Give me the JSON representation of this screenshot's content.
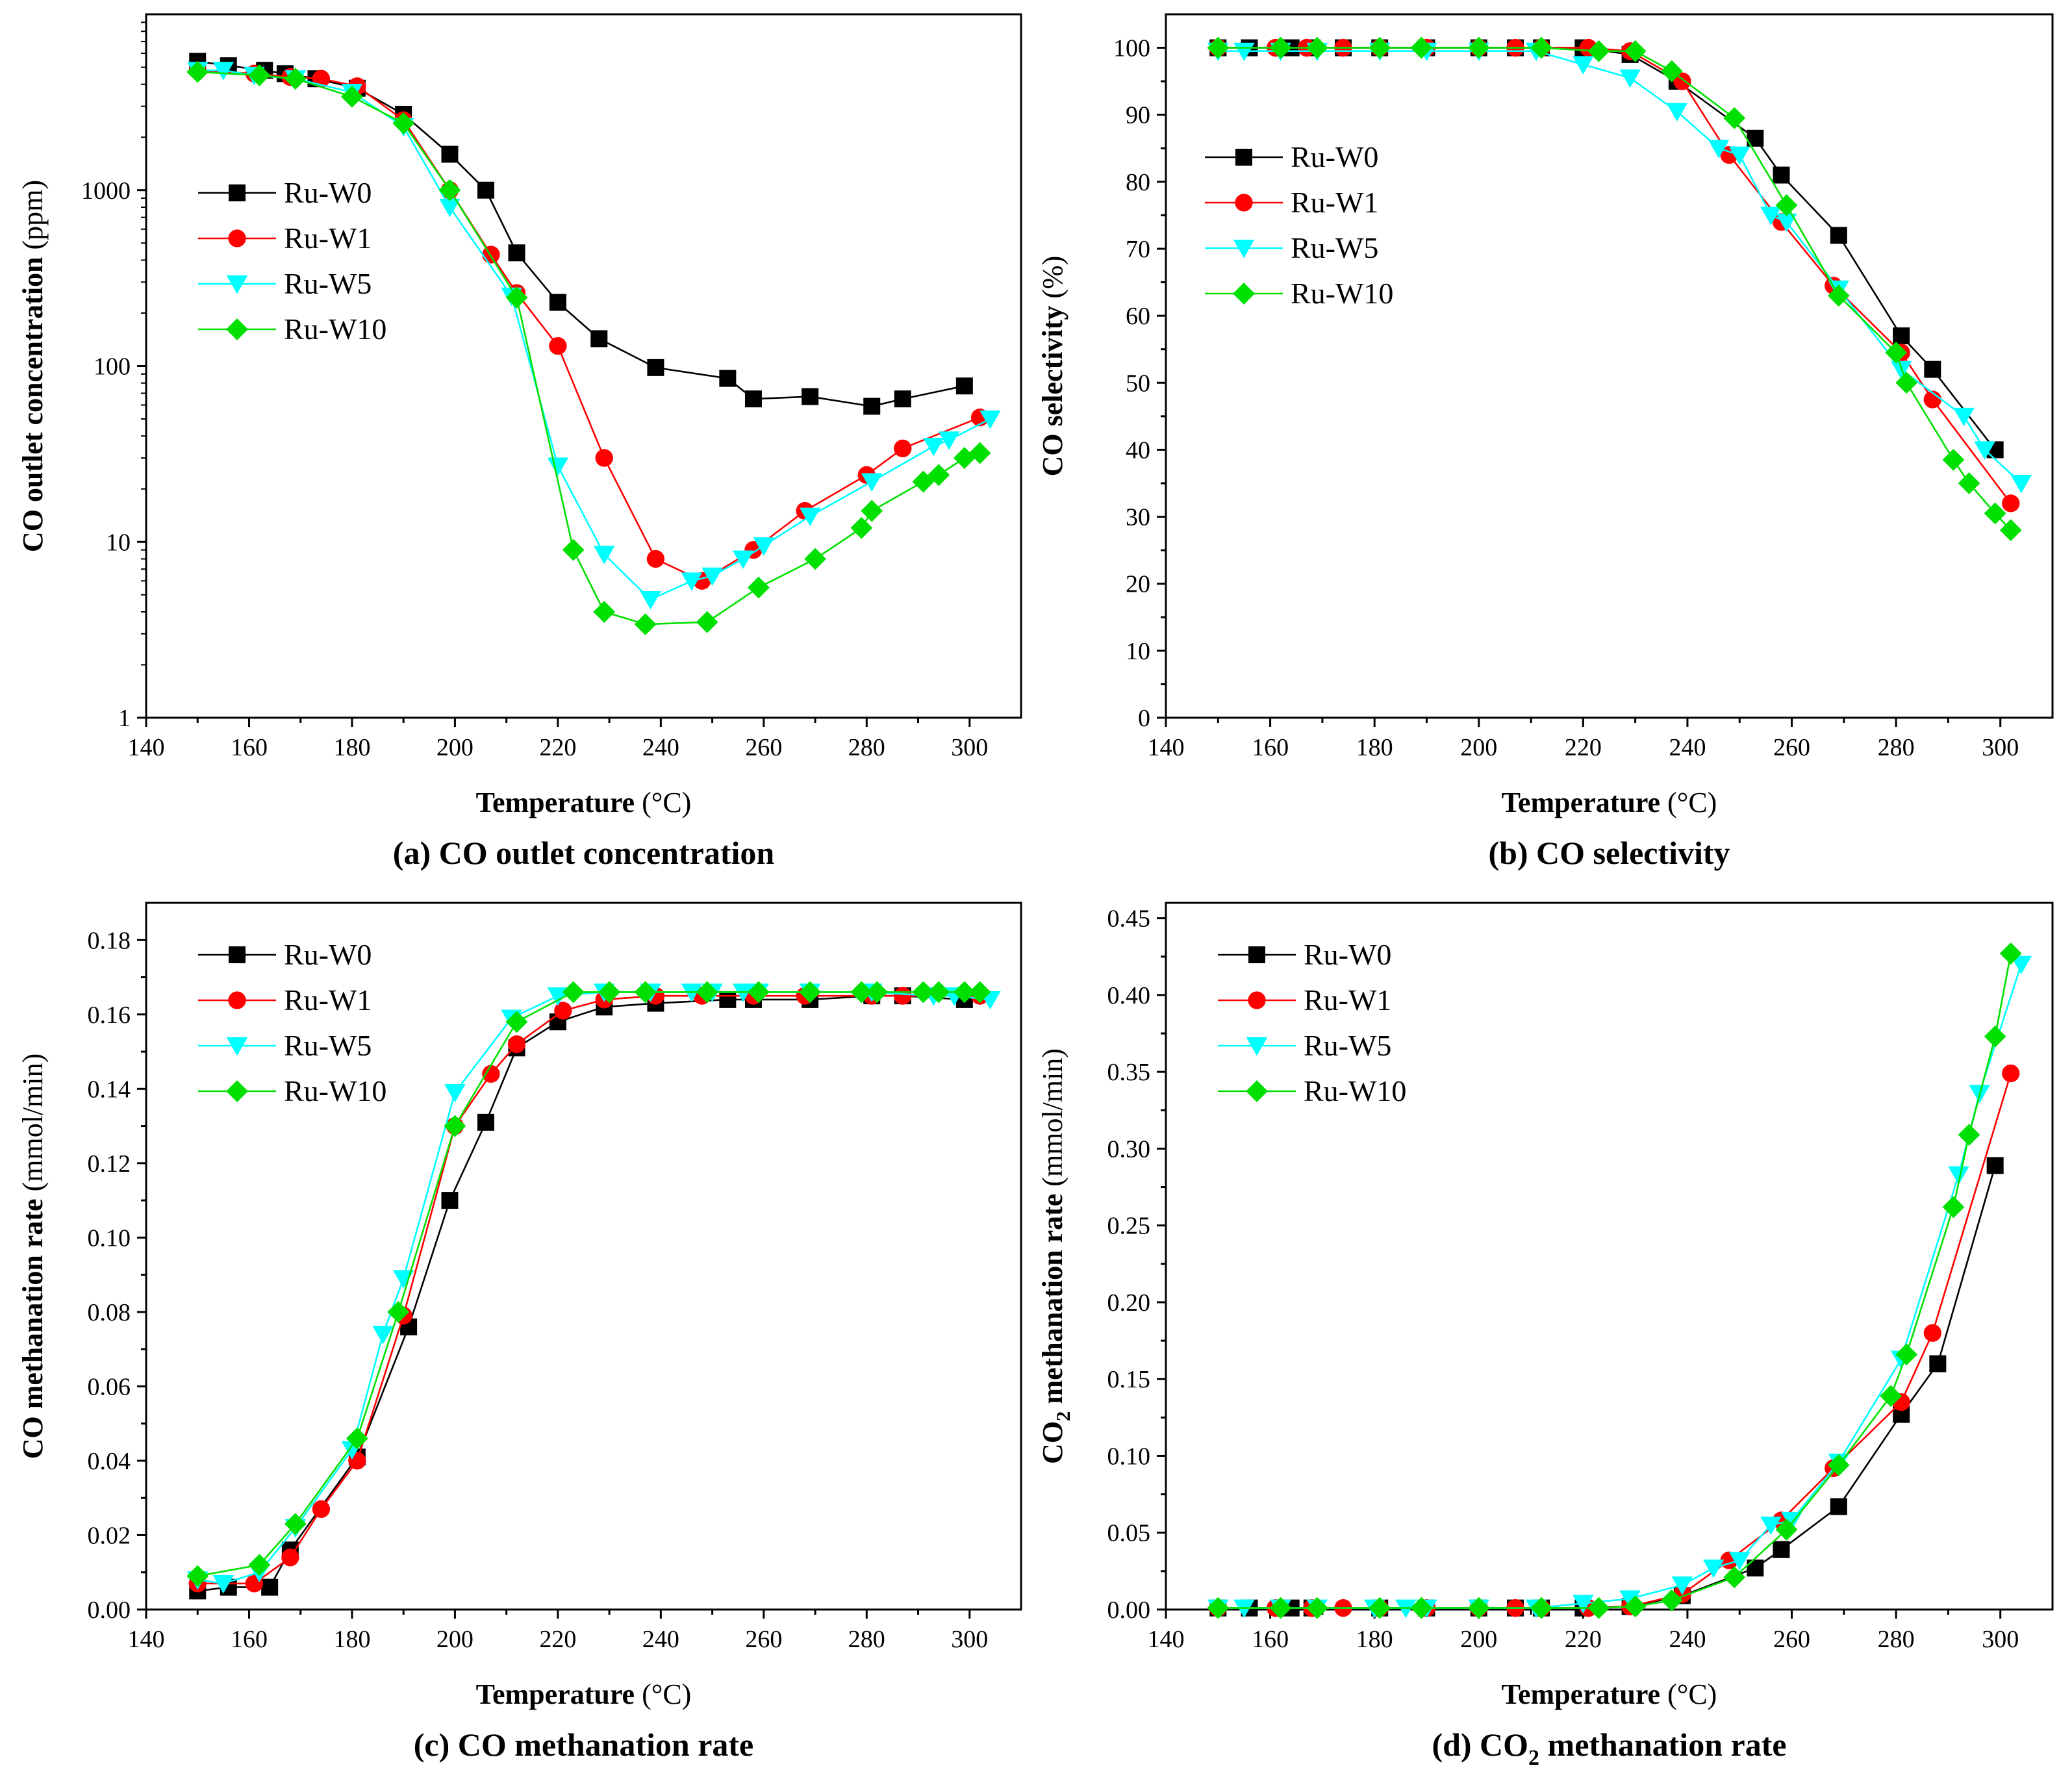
{
  "figure": {
    "xlabel": "Temperature (°C)",
    "colors": {
      "Ru-W0": "#000000",
      "Ru-W1": "#ff0000",
      "Ru-W5": "#00ffff",
      "Ru-W10": "#00e000"
    },
    "markers": {
      "Ru-W0": "square",
      "Ru-W1": "circle",
      "Ru-W5": "triangle-down",
      "Ru-W10": "diamond"
    }
  },
  "chart_data": [
    {
      "type": "line",
      "caption": "(a) CO outlet concentration",
      "ylabel": "CO outlet concentration (ppm)",
      "xlabel": "Temperature (°C)",
      "yscale": "log",
      "xlim": [
        140,
        310
      ],
      "ylim": [
        1,
        10000
      ],
      "xticks": [
        140,
        160,
        180,
        200,
        220,
        240,
        260,
        280,
        300
      ],
      "yticks": [
        1,
        10,
        100,
        1000
      ],
      "ytick_labels": [
        "1",
        "10",
        "100",
        "1000"
      ],
      "legend": "upper-left",
      "series": [
        {
          "name": "Ru-W0",
          "x": [
            150,
            156,
            163,
            167,
            173,
            181,
            190,
            199,
            206,
            212,
            220,
            228,
            239,
            253,
            258,
            269,
            281,
            287,
            299
          ],
          "y": [
            5400,
            5100,
            4800,
            4600,
            4300,
            3800,
            2700,
            1600,
            1000,
            440,
            230,
            143,
            98,
            85,
            65,
            67,
            59,
            65,
            77
          ]
        },
        {
          "name": "Ru-W1",
          "x": [
            150,
            161,
            168,
            174,
            181,
            190,
            199,
            207,
            212,
            220,
            229,
            239,
            248,
            258,
            268,
            280,
            287,
            302
          ],
          "y": [
            4800,
            4600,
            4400,
            4300,
            3900,
            2500,
            1000,
            430,
            260,
            130,
            30,
            8,
            6,
            9,
            15,
            24,
            34,
            51
          ]
        },
        {
          "name": "Ru-W5",
          "x": [
            150,
            155,
            161,
            169,
            180,
            190,
            199,
            211,
            220,
            229,
            238,
            246,
            250,
            256,
            260,
            269,
            281,
            293,
            296,
            304
          ],
          "y": [
            4800,
            4800,
            4500,
            4300,
            3600,
            2300,
            800,
            250,
            27,
            8.5,
            4.7,
            6,
            6.4,
            8,
            9.5,
            14,
            22,
            35,
            38,
            50
          ]
        },
        {
          "name": "Ru-W10",
          "x": [
            150,
            162,
            169,
            180,
            190,
            199,
            212,
            223,
            229,
            237,
            249,
            259,
            270,
            279,
            281,
            291,
            294,
            299,
            302
          ],
          "y": [
            4700,
            4500,
            4300,
            3400,
            2400,
            1000,
            245,
            9,
            4,
            3.4,
            3.5,
            5.5,
            8,
            12,
            15,
            22,
            24,
            30,
            32
          ]
        }
      ]
    },
    {
      "type": "line",
      "caption": "(b) CO selectivity",
      "ylabel": "CO selectivity (%)",
      "xlabel": "Temperature (°C)",
      "yscale": "linear",
      "xlim": [
        140,
        310
      ],
      "ylim": [
        0,
        105
      ],
      "xticks": [
        140,
        160,
        180,
        200,
        220,
        240,
        260,
        280,
        300
      ],
      "yticks": [
        0,
        10,
        20,
        30,
        40,
        50,
        60,
        70,
        80,
        90,
        100
      ],
      "ytick_labels": [
        "0",
        "10",
        "20",
        "30",
        "40",
        "50",
        "60",
        "70",
        "80",
        "90",
        "100"
      ],
      "legend": "left",
      "series": [
        {
          "name": "Ru-W0",
          "x": [
            150,
            156,
            164,
            168,
            174,
            181,
            190,
            200,
            207,
            212,
            220,
            229,
            238,
            253,
            258,
            269,
            281,
            287,
            299
          ],
          "y": [
            100,
            100,
            100,
            100,
            100,
            100,
            100,
            100,
            100,
            100,
            100,
            99,
            95,
            86.5,
            81,
            72,
            57,
            52,
            40
          ]
        },
        {
          "name": "Ru-W1",
          "x": [
            150,
            161,
            167,
            174,
            181,
            190,
            200,
            207,
            212,
            221,
            229,
            239,
            248,
            258,
            268,
            281,
            287,
            302
          ],
          "y": [
            100,
            100,
            100,
            100,
            100,
            100,
            100,
            100,
            100,
            100,
            99.5,
            95,
            84,
            74,
            64.5,
            54.5,
            47.5,
            32
          ]
        },
        {
          "name": "Ru-W5",
          "x": [
            150,
            155,
            162,
            169,
            181,
            190,
            200,
            211,
            220,
            229,
            238,
            246,
            250,
            256,
            259,
            269,
            281,
            293,
            297,
            304
          ],
          "y": [
            99.5,
            99.5,
            99.5,
            99.5,
            99.5,
            99.5,
            99.5,
            99.5,
            97.5,
            95.5,
            90.5,
            85,
            84,
            75,
            74,
            64,
            52,
            45,
            40,
            35
          ]
        },
        {
          "name": "Ru-W10",
          "x": [
            150,
            162,
            169,
            181,
            189,
            200,
            212,
            223,
            230,
            237,
            249,
            259,
            269,
            280,
            282,
            291,
            294,
            299,
            302
          ],
          "y": [
            100,
            100,
            100,
            100,
            100,
            100,
            100,
            99.5,
            99.5,
            96.5,
            89.5,
            76.5,
            63,
            54.5,
            50,
            38.5,
            35,
            30.5,
            28
          ]
        }
      ]
    },
    {
      "type": "line",
      "caption": "(c) CO methanation rate",
      "ylabel": "CO methanation rate (mmol/min)",
      "xlabel": "Temperature (°C)",
      "yscale": "linear",
      "xlim": [
        140,
        310
      ],
      "ylim": [
        0,
        0.19
      ],
      "xticks": [
        140,
        160,
        180,
        200,
        220,
        240,
        260,
        280,
        300
      ],
      "yticks": [
        0,
        0.02,
        0.04,
        0.06,
        0.08,
        0.1,
        0.12,
        0.14,
        0.16,
        0.18
      ],
      "ytick_labels": [
        "0.00",
        "0.02",
        "0.04",
        "0.06",
        "0.08",
        "0.10",
        "0.12",
        "0.14",
        "0.16",
        "0.18"
      ],
      "legend": "upper-left",
      "series": [
        {
          "name": "Ru-W0",
          "x": [
            150,
            156,
            164,
            168,
            181,
            191,
            199,
            206,
            212,
            220,
            229,
            239,
            253,
            258,
            269,
            281,
            287,
            299
          ],
          "y": [
            0.005,
            0.006,
            0.006,
            0.016,
            0.041,
            0.076,
            0.11,
            0.131,
            0.151,
            0.158,
            0.162,
            0.163,
            0.164,
            0.164,
            0.164,
            0.165,
            0.165,
            0.164
          ]
        },
        {
          "name": "Ru-W1",
          "x": [
            150,
            161,
            168,
            174,
            181,
            190,
            200,
            207,
            212,
            221,
            229,
            239,
            248,
            258,
            268,
            281,
            287,
            302
          ],
          "y": [
            0.007,
            0.007,
            0.014,
            0.027,
            0.04,
            0.079,
            0.13,
            0.144,
            0.152,
            0.161,
            0.164,
            0.165,
            0.165,
            0.165,
            0.165,
            0.165,
            0.165,
            0.165
          ]
        },
        {
          "name": "Ru-W5",
          "x": [
            150,
            155,
            162,
            169,
            180,
            186,
            190,
            200,
            211,
            220,
            229,
            238,
            246,
            250,
            256,
            259,
            269,
            281,
            293,
            297,
            304
          ],
          "y": [
            0.008,
            0.007,
            0.01,
            0.022,
            0.043,
            0.074,
            0.089,
            0.139,
            0.159,
            0.165,
            0.166,
            0.166,
            0.166,
            0.166,
            0.166,
            0.166,
            0.166,
            0.166,
            0.165,
            0.165,
            0.164
          ]
        },
        {
          "name": "Ru-W10",
          "x": [
            150,
            162,
            169,
            181,
            189,
            200,
            212,
            223,
            230,
            237,
            249,
            259,
            269,
            279,
            282,
            291,
            294,
            299,
            302
          ],
          "y": [
            0.009,
            0.012,
            0.023,
            0.046,
            0.08,
            0.13,
            0.158,
            0.166,
            0.166,
            0.166,
            0.166,
            0.166,
            0.166,
            0.166,
            0.166,
            0.166,
            0.166,
            0.166,
            0.166
          ]
        }
      ]
    },
    {
      "type": "line",
      "caption": "(d) CO2 methanation rate",
      "ylabel": "CO2 methanation rate (mmol/min)",
      "xlabel": "Temperature (°C)",
      "yscale": "linear",
      "xlim": [
        140,
        310
      ],
      "ylim": [
        0,
        0.46
      ],
      "xticks": [
        140,
        160,
        180,
        200,
        220,
        240,
        260,
        280,
        300
      ],
      "yticks": [
        0,
        0.05,
        0.1,
        0.15,
        0.2,
        0.25,
        0.3,
        0.35,
        0.4,
        0.45
      ],
      "ytick_labels": [
        "0.00",
        "0.05",
        "0.10",
        "0.15",
        "0.20",
        "0.25",
        "0.30",
        "0.35",
        "0.40",
        "0.45"
      ],
      "legend": "upper-left",
      "series": [
        {
          "name": "Ru-W0",
          "x": [
            150,
            156,
            164,
            168,
            181,
            190,
            200,
            207,
            212,
            220,
            229,
            239,
            253,
            258,
            269,
            281,
            288,
            299
          ],
          "y": [
            0.001,
            0.001,
            0.001,
            0.001,
            0.001,
            0.001,
            0.001,
            0.001,
            0.001,
            0.001,
            0.002,
            0.009,
            0.027,
            0.039,
            0.067,
            0.127,
            0.16,
            0.289
          ]
        },
        {
          "name": "Ru-W1",
          "x": [
            150,
            161,
            168,
            174,
            181,
            190,
            200,
            207,
            212,
            221,
            229,
            239,
            248,
            258,
            268,
            281,
            287,
            302
          ],
          "y": [
            0.001,
            0.001,
            0.001,
            0.001,
            0.001,
            0.001,
            0.001,
            0.001,
            0.001,
            0.001,
            0.002,
            0.01,
            0.032,
            0.058,
            0.092,
            0.135,
            0.18,
            0.349
          ]
        },
        {
          "name": "Ru-W5",
          "x": [
            150,
            155,
            162,
            169,
            180,
            186,
            190,
            200,
            211,
            220,
            229,
            239,
            245,
            250,
            256,
            260,
            269,
            281,
            292,
            296,
            304
          ],
          "y": [
            0.001,
            0.001,
            0.001,
            0.001,
            0.001,
            0.001,
            0.001,
            0.001,
            0.001,
            0.004,
            0.007,
            0.016,
            0.027,
            0.032,
            0.055,
            0.058,
            0.096,
            0.163,
            0.283,
            0.336,
            0.42
          ]
        },
        {
          "name": "Ru-W10",
          "x": [
            150,
            162,
            169,
            181,
            189,
            200,
            212,
            223,
            230,
            237,
            249,
            259,
            269,
            279,
            282,
            291,
            294,
            299,
            302
          ],
          "y": [
            0.001,
            0.001,
            0.001,
            0.001,
            0.001,
            0.001,
            0.001,
            0.001,
            0.002,
            0.006,
            0.021,
            0.052,
            0.094,
            0.139,
            0.166,
            0.262,
            0.309,
            0.373,
            0.427
          ]
        }
      ]
    }
  ]
}
